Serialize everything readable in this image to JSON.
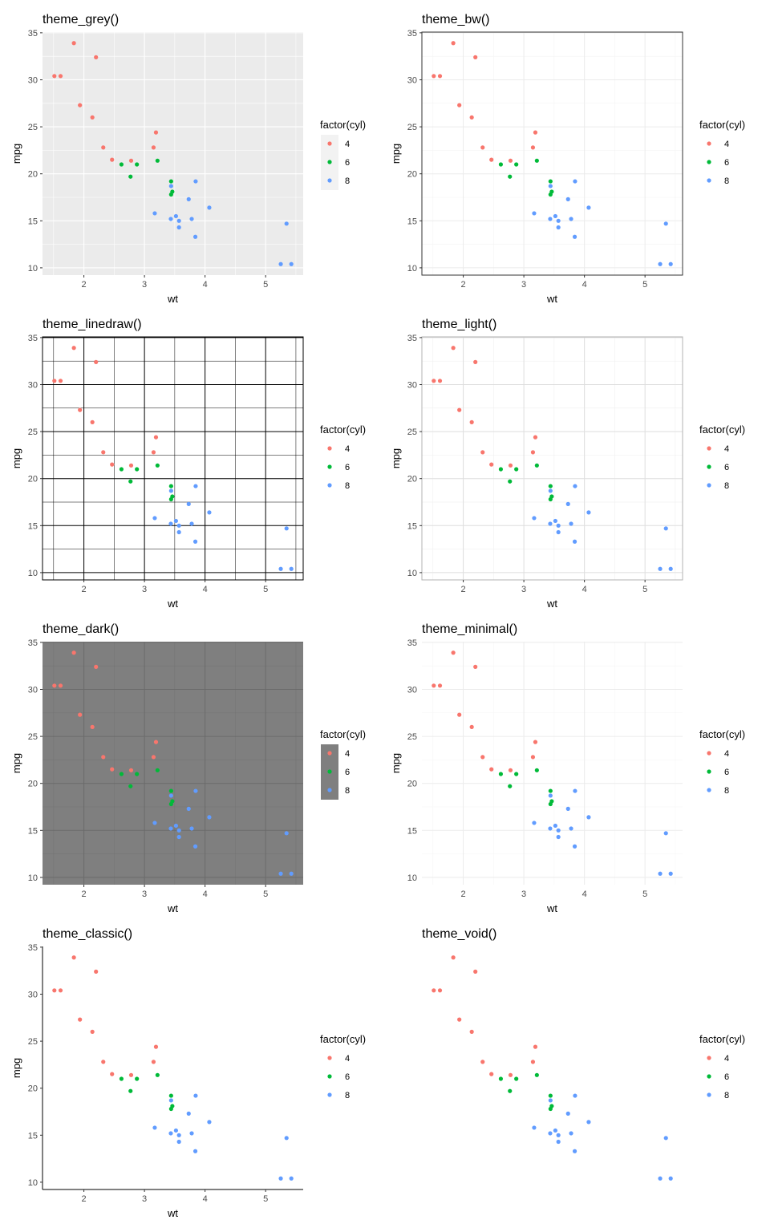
{
  "chart_data": {
    "type": "scatter",
    "xlabel": "wt",
    "ylabel": "mpg",
    "xlim": [
      1.317,
      5.62
    ],
    "ylim": [
      9.225,
      35.075
    ],
    "xticks": [
      2,
      3,
      4,
      5
    ],
    "yticks": [
      10,
      15,
      20,
      25,
      30,
      35
    ],
    "legend": {
      "title": "factor(cyl)",
      "entries": [
        "4",
        "6",
        "8"
      ],
      "position": "right"
    },
    "colors": {
      "4": "#F8766D",
      "6": "#00BA38",
      "8": "#619CFF"
    },
    "panels": [
      {
        "title": "theme_grey()",
        "theme": "grey"
      },
      {
        "title": "theme_bw()",
        "theme": "bw"
      },
      {
        "title": "theme_linedraw()",
        "theme": "linedraw"
      },
      {
        "title": "theme_light()",
        "theme": "light"
      },
      {
        "title": "theme_dark()",
        "theme": "dark"
      },
      {
        "title": "theme_minimal()",
        "theme": "minimal"
      },
      {
        "title": "theme_classic()",
        "theme": "classic"
      },
      {
        "title": "theme_void()",
        "theme": "void"
      }
    ],
    "points": {
      "wt": [
        2.62,
        2.875,
        2.32,
        3.215,
        3.44,
        3.46,
        3.57,
        3.19,
        3.15,
        3.44,
        3.44,
        4.07,
        3.73,
        3.78,
        5.25,
        5.424,
        5.345,
        2.2,
        1.615,
        1.835,
        2.465,
        3.52,
        3.435,
        3.84,
        3.845,
        1.935,
        2.14,
        1.513,
        3.17,
        2.77,
        3.57,
        2.78
      ],
      "mpg": [
        21,
        21,
        22.8,
        21.4,
        18.7,
        18.1,
        14.3,
        24.4,
        22.8,
        19.2,
        17.8,
        16.4,
        17.3,
        15.2,
        10.4,
        10.4,
        14.7,
        32.4,
        30.4,
        33.9,
        21.5,
        15.5,
        15.2,
        13.3,
        19.2,
        27.3,
        26,
        30.4,
        15.8,
        19.7,
        15,
        21.4
      ],
      "cyl": [
        "6",
        "6",
        "4",
        "6",
        "8",
        "6",
        "8",
        "4",
        "4",
        "6",
        "6",
        "8",
        "8",
        "8",
        "8",
        "8",
        "8",
        "4",
        "4",
        "4",
        "4",
        "8",
        "8",
        "8",
        "8",
        "4",
        "4",
        "4",
        "8",
        "6",
        "8",
        "4"
      ]
    }
  }
}
